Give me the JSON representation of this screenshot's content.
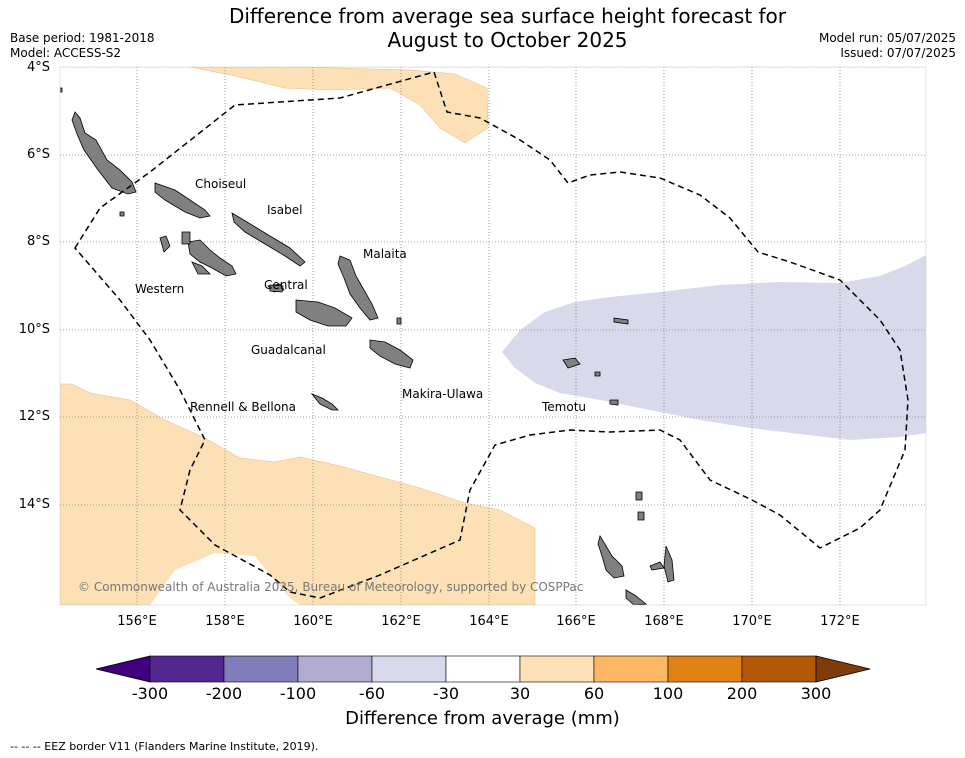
{
  "title": "Difference from average sea surface height forecast for\nAugust to October 2025",
  "title_line1": "Difference from average sea surface height forecast for",
  "title_line2": "August to October 2025",
  "base_period": "Base period: 1981-2018",
  "model": "Model: ACCESS-S2",
  "model_run": "Model run: 05/07/2025",
  "issued": "Issued: 07/07/2025",
  "lat_labels": [
    "4°S",
    "6°S",
    "8°S",
    "10°S",
    "12°S",
    "14°S"
  ],
  "lon_labels": [
    "156°E",
    "158°E",
    "160°E",
    "162°E",
    "164°E",
    "166°E",
    "168°E",
    "170°E",
    "172°E"
  ],
  "provinces": {
    "choiseul": "Choiseul",
    "isabel": "Isabel",
    "malaita": "Malaita",
    "western": "Western",
    "central": "Central",
    "guadalcanal": "Guadalcanal",
    "makira": "Makira-Ulawa",
    "rennell": "Rennell & Bellona",
    "temotu": "Temotu"
  },
  "copyright": "© Commonwealth of Australia 2025, Bureau of Meteorology, supported by COSPPac",
  "colorbar": {
    "ticks": [
      "-300",
      "-200",
      "-100",
      "-60",
      "-30",
      "30",
      "60",
      "100",
      "200",
      "300"
    ],
    "colors": [
      "#3f007d",
      "#54278f",
      "#807dba",
      "#b2abd2",
      "#d8daeb",
      "#ffffff",
      "#fee0b6",
      "#fdb863",
      "#e08214",
      "#b35806",
      "#7f3b08"
    ],
    "title": "Difference from average (mm)"
  },
  "footnote": "--  --  -- EEZ border V11 (Flanders Marine Institute, 2019)."
}
